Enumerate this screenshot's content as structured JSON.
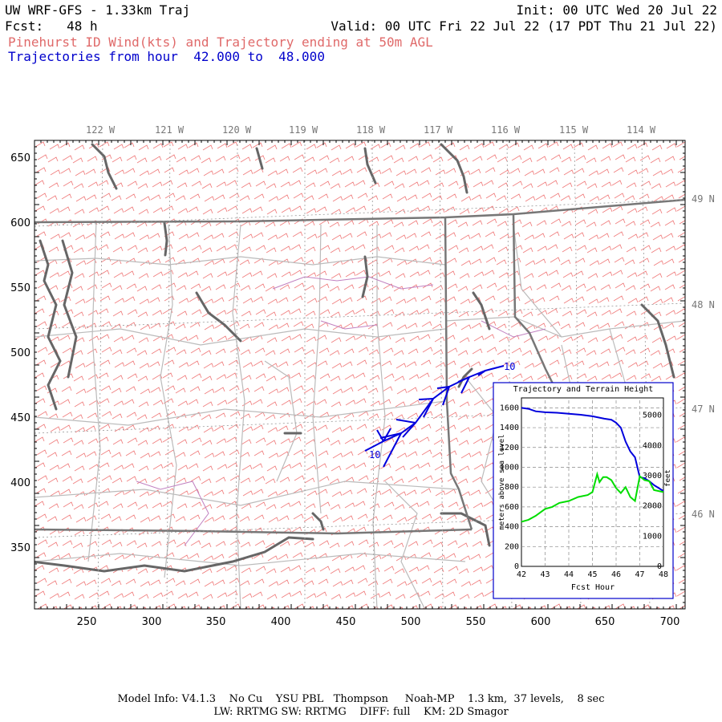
{
  "header": {
    "title": "UW WRF-GFS - 1.33km Traj",
    "init": "Init: 00 UTC Wed 20 Jul 22",
    "fcst": "Fcst:   48 h",
    "valid": "Valid: 00 UTC Fri 22 Jul 22 (17 PDT Thu 21 Jul 22)",
    "subtitle_wind": "Pinehurst ID Wind(kts) and Trajectory ending at 50m AGL",
    "subtitle_traj": "Trajectories from hour  42.000 to  48.000"
  },
  "map": {
    "top_ticks": [
      "122 W",
      "121 W",
      "120 W",
      "119 W",
      "118 W",
      "117 W",
      "116 W",
      "115 W",
      "114 W"
    ],
    "right_ticks": [
      "49 N",
      "48 N",
      "47 N",
      "46 N"
    ],
    "left_axis": [
      650,
      600,
      550,
      500,
      450,
      400,
      350
    ],
    "bottom_axis": [
      250,
      300,
      350,
      400,
      450,
      500,
      550,
      600,
      650,
      700
    ],
    "trajectory_labels": {
      "start": "10",
      "end": "10"
    },
    "colors": {
      "wind": "#f08080",
      "trajectory": "#0000dd",
      "borders": "#666666",
      "terrain": "#00dd00"
    }
  },
  "inset": {
    "title": "Trajectory and Terrain Height",
    "xlabel": "Fcst Hour",
    "ylabel_left": "meters above sea level",
    "ylabel_right": "feet",
    "x_ticks": [
      "42",
      "43",
      "44",
      "45",
      "46",
      "47",
      "48"
    ],
    "y_ticks_left": [
      "0",
      "200",
      "400",
      "600",
      "800",
      "1000",
      "1200",
      "1400",
      "1600"
    ],
    "y_ticks_right": [
      "0",
      "1000",
      "2000",
      "3000",
      "4000",
      "5000"
    ]
  },
  "chart_data": {
    "type": "line",
    "title": "Trajectory and Terrain Height",
    "xlabel": "Fcst Hour",
    "ylabel": "meters above sea level",
    "xlim": [
      42,
      48
    ],
    "ylim": [
      0,
      1700
    ],
    "grid": true,
    "series": [
      {
        "color": "#0000dd",
        "x": [
          42.0,
          42.3,
          42.6,
          43.0,
          43.5,
          44.0,
          44.5,
          45.0,
          45.5,
          45.8,
          46.0,
          46.2,
          46.4,
          46.6,
          46.8,
          47.0,
          47.2,
          47.4,
          47.6,
          47.8,
          48.0
        ],
        "values": [
          1600,
          1590,
          1565,
          1555,
          1550,
          1540,
          1530,
          1515,
          1490,
          1480,
          1450,
          1400,
          1260,
          1160,
          1100,
          900,
          890,
          860,
          820,
          790,
          760
        ]
      },
      {
        "color": "#00dd00",
        "x": [
          42.0,
          42.3,
          42.6,
          43.0,
          43.3,
          43.6,
          44.0,
          44.4,
          44.8,
          45.0,
          45.2,
          45.3,
          45.45,
          45.6,
          45.8,
          46.0,
          46.2,
          46.4,
          46.6,
          46.8,
          47.0,
          47.2,
          47.4,
          47.6,
          47.8,
          48.0
        ],
        "values": [
          450,
          470,
          510,
          580,
          600,
          640,
          660,
          700,
          720,
          750,
          930,
          850,
          900,
          900,
          870,
          790,
          740,
          800,
          700,
          660,
          910,
          870,
          860,
          770,
          760,
          750
        ]
      }
    ]
  }
}
